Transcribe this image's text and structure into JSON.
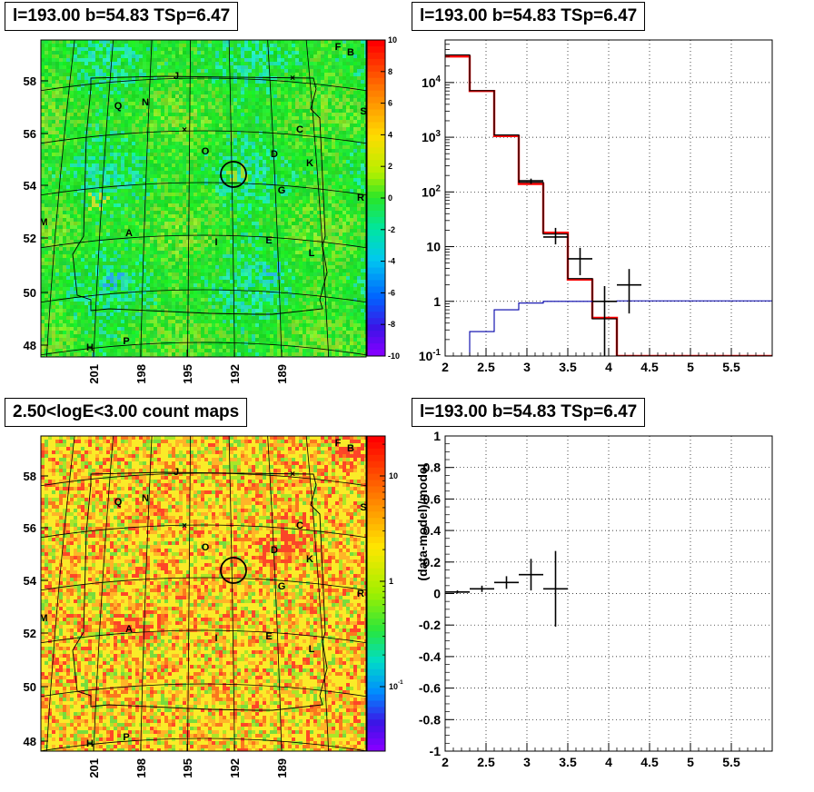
{
  "panel_titles": {
    "top_left": "l=193.00 b=54.83 TSp=6.47",
    "top_right": "l=193.00 b=54.83 TSp=6.47",
    "bottom_left": "2.50<logE<3.00 count maps",
    "bottom_right": "l=193.00 b=54.83 TSp=6.47"
  },
  "chart_data": [
    {
      "id": "tsmap",
      "type": "heatmap",
      "title": "l=193.00 b=54.83 TSp=6.47",
      "x_ticks": [
        "201",
        "198",
        "195",
        "192",
        "189"
      ],
      "y_ticks": [
        "48",
        "50",
        "52",
        "54",
        "56",
        "58"
      ],
      "colorbar_ticks": [
        "10",
        "8",
        "6",
        "4",
        "2",
        "0",
        "-2",
        "-4",
        "-6",
        "-8",
        "-10"
      ],
      "colorbar_range": [
        -10,
        10
      ],
      "source_labels": [
        "F",
        "B",
        "J",
        "Q",
        "N",
        "S",
        "C",
        "O",
        "D",
        "K",
        "G",
        "R",
        "M",
        "A",
        "I",
        "E",
        "L",
        "H",
        "P"
      ],
      "colors": {
        "background_green": "#22e030"
      }
    },
    {
      "id": "spectrum",
      "type": "line",
      "title": "l=193.00 b=54.83 TSp=6.47",
      "x_ticks": [
        "2",
        "2.5",
        "3",
        "3.5",
        "4",
        "4.5",
        "5",
        "5.5"
      ],
      "y_ticks": [
        "10^-1",
        "1",
        "10",
        "10^2",
        "10^3",
        "10^4"
      ],
      "xlim": [
        2,
        6
      ],
      "ylim": [
        0.1,
        60000
      ],
      "log_y": true,
      "grid": true,
      "bin_edges": [
        2.0,
        2.3,
        2.6,
        2.9,
        3.2,
        3.5,
        3.8,
        4.1,
        4.4,
        4.7,
        5.0,
        5.3,
        5.6,
        5.9,
        6.0
      ],
      "series": [
        {
          "color": "#ff0000",
          "values": [
            30000,
            7000,
            1050,
            140,
            18,
            2.5,
            0.5,
            0.1,
            0.1,
            0.1,
            0.1,
            0.1,
            0.1,
            0.1
          ]
        },
        {
          "color": "#000000",
          "values": [
            32000,
            7100,
            1100,
            150,
            17,
            2.6,
            0.48,
            0.1,
            0.1,
            0.1,
            0.1,
            0.1,
            0.1,
            0.1
          ]
        },
        {
          "color": "#0000aa",
          "values": [
            0.01,
            0.28,
            0.7,
            0.93,
            1.0,
            1.0,
            1.0,
            1.02,
            1.02,
            1.02,
            1.02,
            1.02,
            1.02,
            1.02
          ]
        }
      ],
      "points": [
        {
          "x": 3.05,
          "y": 160,
          "xerr": 0.15,
          "ylo": 140,
          "yhi": 175
        },
        {
          "x": 3.35,
          "y": 15,
          "xerr": 0.15,
          "ylo": 11,
          "yhi": 22
        },
        {
          "x": 3.65,
          "y": 6,
          "xerr": 0.15,
          "ylo": 3,
          "yhi": 9.5
        },
        {
          "x": 3.95,
          "y": 1,
          "xerr": 0.15,
          "ylo": 0.1,
          "yhi": 1.9
        },
        {
          "x": 4.25,
          "y": 2,
          "xerr": 0.15,
          "ylo": 0.6,
          "yhi": 3.9
        }
      ]
    },
    {
      "id": "countmap",
      "type": "heatmap",
      "title": "2.50<logE<3.00 count maps",
      "x_ticks": [
        "201",
        "198",
        "195",
        "192",
        "189"
      ],
      "y_ticks": [
        "48",
        "50",
        "52",
        "54",
        "56",
        "58"
      ],
      "colorbar_ticks": [
        "10",
        "1",
        "10^-1"
      ],
      "log_colorbar": true,
      "source_labels": [
        "F",
        "B",
        "J",
        "Q",
        "N",
        "S",
        "C",
        "O",
        "D",
        "K",
        "G",
        "R",
        "M",
        "A",
        "I",
        "E",
        "L",
        "H",
        "P"
      ]
    },
    {
      "id": "residual",
      "type": "scatter",
      "title": "l=193.00 b=54.83 TSp=6.47",
      "ylabel": "(data-model)/model",
      "x_ticks": [
        "2",
        "2.5",
        "3",
        "3.5",
        "4",
        "4.5",
        "5",
        "5.5"
      ],
      "y_ticks": [
        "1",
        "0.8",
        "0.6",
        "0.4",
        "0.2",
        "0",
        "-0.2",
        "-0.4",
        "-0.6",
        "-0.8",
        "-1"
      ],
      "xlim": [
        2,
        6
      ],
      "ylim": [
        -1,
        1
      ],
      "grid": true,
      "points": [
        {
          "x": 2.15,
          "y": 0.01,
          "xerr": 0.15,
          "yerr": 0.01
        },
        {
          "x": 2.45,
          "y": 0.03,
          "xerr": 0.15,
          "yerr": 0.02
        },
        {
          "x": 2.75,
          "y": 0.07,
          "xerr": 0.15,
          "yerr": 0.04
        },
        {
          "x": 3.05,
          "y": 0.12,
          "xerr": 0.15,
          "yerr": 0.1
        },
        {
          "x": 3.35,
          "y": 0.03,
          "xerr": 0.15,
          "yerr": 0.24
        }
      ]
    }
  ]
}
